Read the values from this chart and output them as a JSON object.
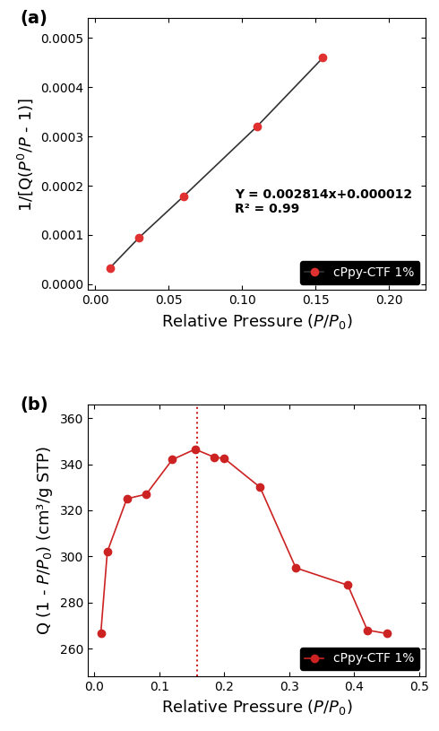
{
  "panel_a": {
    "x": [
      0.01,
      0.03,
      0.06,
      0.11,
      0.155
    ],
    "y": [
      3.3e-05,
      9.5e-05,
      0.000178,
      0.00032,
      0.00046
    ],
    "line_color": "#333333",
    "marker_color": "#e03030",
    "marker_size": 6,
    "xlabel": "Relative Pressure ($P/P_0$)",
    "ylabel": "1/[Q($P^0/P$ - 1)]",
    "xlim": [
      -0.005,
      0.225
    ],
    "ylim": [
      -1.2e-05,
      0.00054
    ],
    "xticks": [
      0.0,
      0.05,
      0.1,
      0.15,
      0.2
    ],
    "yticks": [
      0.0,
      0.0001,
      0.0002,
      0.0003,
      0.0004,
      0.0005
    ],
    "equation": "Y = 0.002814x+0.000012",
    "r2": "R² = 0.99",
    "legend_label": "cPpy-CTF 1%",
    "panel_label": "(a)"
  },
  "panel_b": {
    "x": [
      0.01,
      0.02,
      0.05,
      0.08,
      0.12,
      0.155,
      0.185,
      0.2,
      0.255,
      0.31,
      0.39,
      0.42,
      0.45
    ],
    "y": [
      266.5,
      302.0,
      325.0,
      327.0,
      342.0,
      346.5,
      343.0,
      342.5,
      330.0,
      295.0,
      287.5,
      268.0,
      266.5
    ],
    "line_color": "#cc2222",
    "marker_color": "#cc2222",
    "marker_size": 6,
    "vline_x": 0.158,
    "vline_color": "#cc2222",
    "xlabel": "Relative Pressure ($P/P_0$)",
    "ylabel": "Q (1 - $P/P_0$) (cm³/g STP)",
    "xlim": [
      -0.01,
      0.51
    ],
    "ylim": [
      248,
      366
    ],
    "xticks": [
      0.0,
      0.1,
      0.2,
      0.3,
      0.4,
      0.5
    ],
    "yticks": [
      260,
      280,
      300,
      320,
      340,
      360
    ],
    "legend_label": "cPpy-CTF 1%",
    "panel_label": "(b)"
  },
  "background_color": "#ffffff",
  "tick_fontsize": 10,
  "label_fontsize": 13,
  "legend_fontsize": 10,
  "annotation_fontsize": 10
}
